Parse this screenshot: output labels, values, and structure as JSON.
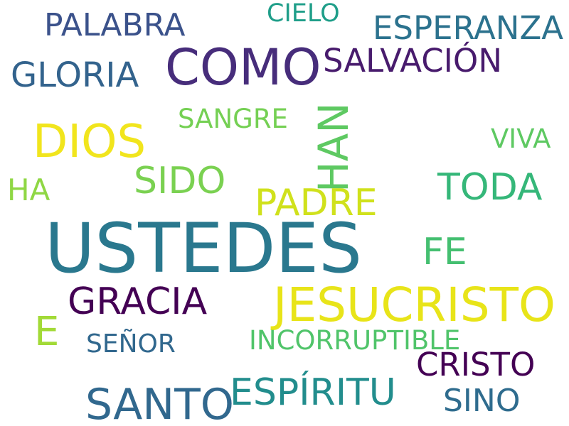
{
  "words": [
    {
      "text": "USTEDES",
      "color": "#2a788e"
    },
    {
      "text": "COMO",
      "color": "#472d7b"
    },
    {
      "text": "JESUCRISTO",
      "color": "#e8e419"
    },
    {
      "text": "DIOS",
      "color": "#f1e51d"
    },
    {
      "text": "HAN",
      "color": "#5ec962"
    },
    {
      "text": "SANTO",
      "color": "#31688e"
    },
    {
      "text": "PALABRA",
      "color": "#3b528b"
    },
    {
      "text": "GLORIA",
      "color": "#33638d"
    },
    {
      "text": "ESPERANZA",
      "color": "#2c728e"
    },
    {
      "text": "SALVACIÓN",
      "color": "#481b6d"
    },
    {
      "text": "GRACIA",
      "color": "#440154"
    },
    {
      "text": "ESPÍRITU",
      "color": "#228d8d"
    },
    {
      "text": "TODA",
      "color": "#35b779"
    },
    {
      "text": "SIDO",
      "color": "#7ad151"
    },
    {
      "text": "PADRE",
      "color": "#d0e11c"
    },
    {
      "text": "CRISTO",
      "color": "#440154"
    },
    {
      "text": "FE",
      "color": "#44bf70"
    },
    {
      "text": "E",
      "color": "#a2da37"
    },
    {
      "text": "SINO",
      "color": "#2f6c8e"
    },
    {
      "text": "SANGRE",
      "color": "#75d054"
    },
    {
      "text": "INCORRUPTIBLE",
      "color": "#50c46a"
    },
    {
      "text": "CIELO",
      "color": "#1f9e89"
    },
    {
      "text": "SEÑOR",
      "color": "#31688e"
    },
    {
      "text": "VIVA",
      "color": "#5ec962"
    },
    {
      "text": "HA",
      "color": "#8fd744"
    }
  ]
}
